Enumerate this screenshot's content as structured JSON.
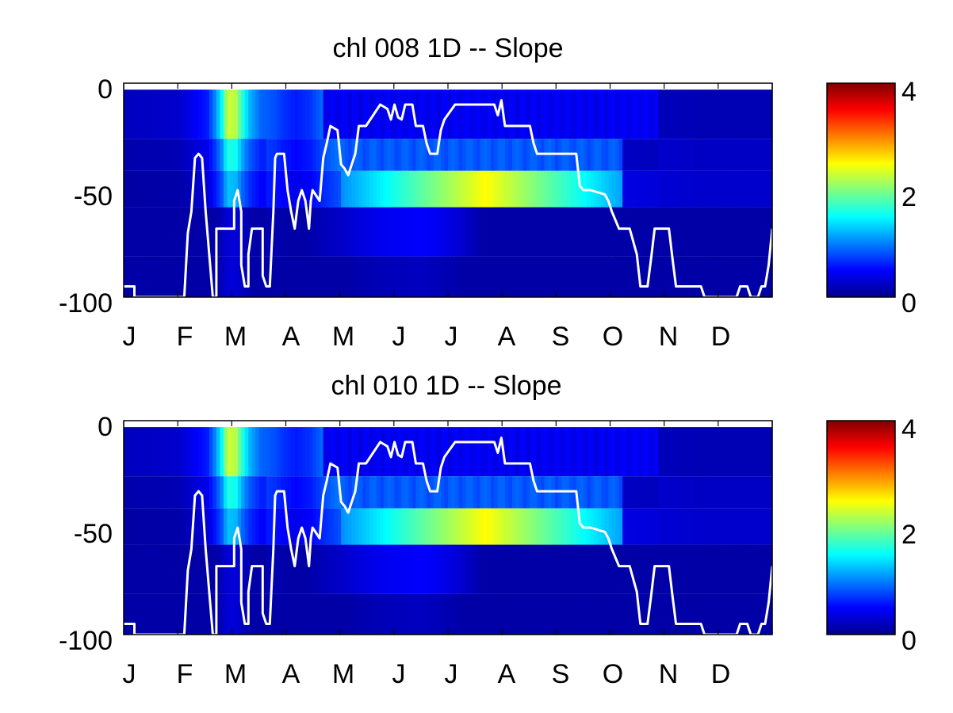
{
  "chart_data": [
    {
      "type": "heatmap",
      "title": "chl  008 1D   -- Slope",
      "x_tick_labels": [
        "J",
        "F",
        "M",
        "A",
        "M",
        "J",
        "J",
        "A",
        "S",
        "O",
        "N",
        "D"
      ],
      "y_tick_labels": [
        "0",
        "-50",
        "-100"
      ],
      "ylim": [
        -100,
        0
      ],
      "colorbar": {
        "ticks": [
          "0",
          "2",
          "4"
        ],
        "range": [
          0,
          4
        ],
        "colormap": "jet"
      },
      "depth_layer_tops": [
        -3,
        -26,
        -41,
        -58,
        -81
      ],
      "value_profile": [
        [
          0,
          0.25
        ],
        [
          15,
          0.3
        ],
        [
          23,
          0.6
        ],
        [
          25,
          1.0
        ],
        [
          27,
          1.5
        ],
        [
          28,
          2.0
        ],
        [
          29,
          2.3
        ],
        [
          31,
          2.2
        ],
        [
          33,
          1.6
        ],
        [
          35,
          1.2
        ],
        [
          38,
          0.9
        ],
        [
          42,
          0.8
        ],
        [
          44,
          0.7
        ],
        [
          48,
          0.6
        ],
        [
          52,
          0.7
        ],
        [
          55,
          0.9
        ],
        [
          60,
          1.15
        ],
        [
          65,
          1.45
        ],
        [
          70,
          1.75
        ],
        [
          75,
          1.9
        ],
        [
          80,
          2.0
        ],
        [
          83,
          2.05
        ],
        [
          87,
          1.9
        ],
        [
          92,
          1.55
        ],
        [
          96,
          1.1
        ],
        [
          100,
          0.7
        ],
        [
          104,
          0.5
        ],
        [
          108,
          0.7
        ],
        [
          112,
          0.95
        ],
        [
          116,
          1.05
        ],
        [
          119,
          0.95
        ],
        [
          121,
          1.1
        ],
        [
          123,
          0.9
        ],
        [
          125,
          1.2
        ],
        [
          127,
          0.8
        ],
        [
          130,
          0.6
        ],
        [
          140,
          0.35
        ],
        [
          162,
          0.3
        ]
      ],
      "layer_weights": [
        [
          1.0,
          0.7,
          0.5,
          0.25,
          0.25,
          0.2
        ],
        [
          1.0,
          0.85,
          0.7,
          0.4,
          0.2,
          0.2
        ],
        [
          0.5,
          0.75,
          1.1,
          0.15,
          0.1,
          0.1
        ],
        [
          0.7,
          0.9,
          1.0,
          0.45,
          0.5,
          0.4
        ]
      ],
      "mixed_layer_depth": [
        [
          0,
          -95
        ],
        [
          3,
          -95
        ],
        [
          3,
          -100
        ],
        [
          17,
          -100
        ],
        [
          18,
          -70
        ],
        [
          19,
          -60
        ],
        [
          20,
          -35
        ],
        [
          21,
          -33
        ],
        [
          22,
          -35
        ],
        [
          23,
          -60
        ],
        [
          25,
          -100
        ],
        [
          26,
          -100
        ],
        [
          26,
          -68
        ],
        [
          31,
          -68
        ],
        [
          31,
          -55
        ],
        [
          32,
          -50
        ],
        [
          33,
          -60
        ],
        [
          33,
          -85
        ],
        [
          34,
          -95
        ],
        [
          35,
          -95
        ],
        [
          35,
          -80
        ],
        [
          36,
          -68
        ],
        [
          39,
          -68
        ],
        [
          39,
          -90
        ],
        [
          40,
          -95
        ],
        [
          41,
          -95
        ],
        [
          42,
          -60
        ],
        [
          42.5,
          -35
        ],
        [
          43,
          -33
        ],
        [
          45,
          -33
        ],
        [
          46,
          -50
        ],
        [
          47,
          -60
        ],
        [
          48,
          -68
        ],
        [
          49,
          -55
        ],
        [
          50,
          -50
        ],
        [
          51,
          -55
        ],
        [
          52,
          -68
        ],
        [
          52.5,
          -55
        ],
        [
          53,
          -50
        ],
        [
          55,
          -55
        ],
        [
          56,
          -35
        ],
        [
          57,
          -28
        ],
        [
          58,
          -20
        ],
        [
          60,
          -22
        ],
        [
          61,
          -38
        ],
        [
          62,
          -40
        ],
        [
          63,
          -43
        ],
        [
          64,
          -38
        ],
        [
          65,
          -33
        ],
        [
          66,
          -20
        ],
        [
          68,
          -20
        ],
        [
          70,
          -15
        ],
        [
          72,
          -10
        ],
        [
          74,
          -12
        ],
        [
          75,
          -17
        ],
        [
          76,
          -10
        ],
        [
          77,
          -16
        ],
        [
          78,
          -17
        ],
        [
          79,
          -10
        ],
        [
          81,
          -10
        ],
        [
          82,
          -20
        ],
        [
          84,
          -20
        ],
        [
          85,
          -28
        ],
        [
          86,
          -33
        ],
        [
          88,
          -33
        ],
        [
          89,
          -22
        ],
        [
          90,
          -17
        ],
        [
          93,
          -10
        ],
        [
          104,
          -10
        ],
        [
          105,
          -15
        ],
        [
          106,
          -8
        ],
        [
          107,
          -20
        ],
        [
          114,
          -20
        ],
        [
          115,
          -28
        ],
        [
          116,
          -33
        ],
        [
          127,
          -33
        ],
        [
          128,
          -48
        ],
        [
          129,
          -50
        ],
        [
          131,
          -50
        ],
        [
          135,
          -52
        ],
        [
          136,
          -55
        ],
        [
          137,
          -60
        ],
        [
          139,
          -68
        ],
        [
          142,
          -68
        ],
        [
          144,
          -80
        ],
        [
          145,
          -95
        ],
        [
          147,
          -95
        ],
        [
          148,
          -82
        ],
        [
          149,
          -68
        ],
        [
          153,
          -68
        ],
        [
          154,
          -82
        ],
        [
          155,
          -95
        ],
        [
          162,
          -95
        ],
        [
          163,
          -100
        ],
        [
          172,
          -100
        ],
        [
          173,
          -95
        ],
        [
          175,
          -95
        ],
        [
          176,
          -100
        ],
        [
          178,
          -100
        ],
        [
          179,
          -95
        ],
        [
          180,
          -95
        ],
        [
          181,
          -85
        ],
        [
          182,
          -68
        ]
      ]
    },
    {
      "type": "heatmap",
      "title": "chl  010 1D   -- Slope",
      "x_tick_labels": [
        "J",
        "F",
        "M",
        "A",
        "M",
        "J",
        "J",
        "A",
        "S",
        "O",
        "N",
        "D"
      ],
      "y_tick_labels": [
        "0",
        "-50",
        "-100"
      ],
      "ylim": [
        -100,
        0
      ],
      "colorbar": {
        "ticks": [
          "0",
          "2",
          "4"
        ],
        "range": [
          0,
          4
        ],
        "colormap": "jet"
      },
      "depth_layer_tops": [
        -3,
        -26,
        -41,
        -58,
        -81
      ],
      "value_profile": [
        [
          0,
          0.25
        ],
        [
          15,
          0.3
        ],
        [
          23,
          0.6
        ],
        [
          25,
          1.0
        ],
        [
          27,
          1.5
        ],
        [
          28,
          2.0
        ],
        [
          29,
          2.3
        ],
        [
          31,
          2.2
        ],
        [
          33,
          1.6
        ],
        [
          35,
          1.2
        ],
        [
          38,
          0.9
        ],
        [
          42,
          0.8
        ],
        [
          44,
          0.7
        ],
        [
          48,
          0.6
        ],
        [
          52,
          0.7
        ],
        [
          55,
          0.9
        ],
        [
          60,
          1.15
        ],
        [
          65,
          1.45
        ],
        [
          70,
          1.75
        ],
        [
          75,
          1.9
        ],
        [
          80,
          2.0
        ],
        [
          83,
          2.05
        ],
        [
          87,
          1.9
        ],
        [
          92,
          1.55
        ],
        [
          96,
          1.1
        ],
        [
          100,
          0.7
        ],
        [
          104,
          0.5
        ],
        [
          108,
          0.7
        ],
        [
          112,
          0.95
        ],
        [
          116,
          1.05
        ],
        [
          119,
          0.95
        ],
        [
          121,
          1.1
        ],
        [
          123,
          0.9
        ],
        [
          125,
          1.2
        ],
        [
          127,
          0.8
        ],
        [
          130,
          0.6
        ],
        [
          140,
          0.35
        ],
        [
          162,
          0.3
        ]
      ],
      "layer_weights": [
        [
          1.0,
          0.7,
          0.5,
          0.25,
          0.25,
          0.2
        ],
        [
          1.0,
          0.85,
          0.7,
          0.4,
          0.2,
          0.2
        ],
        [
          0.5,
          0.75,
          1.1,
          0.15,
          0.1,
          0.1
        ],
        [
          0.7,
          0.9,
          1.0,
          0.45,
          0.5,
          0.4
        ]
      ],
      "mixed_layer_depth": [
        [
          0,
          -95
        ],
        [
          3,
          -95
        ],
        [
          3,
          -100
        ],
        [
          17,
          -100
        ],
        [
          18,
          -70
        ],
        [
          19,
          -60
        ],
        [
          20,
          -35
        ],
        [
          21,
          -33
        ],
        [
          22,
          -35
        ],
        [
          23,
          -60
        ],
        [
          25,
          -100
        ],
        [
          26,
          -100
        ],
        [
          26,
          -68
        ],
        [
          31,
          -68
        ],
        [
          31,
          -55
        ],
        [
          32,
          -50
        ],
        [
          33,
          -60
        ],
        [
          33,
          -85
        ],
        [
          34,
          -95
        ],
        [
          35,
          -95
        ],
        [
          35,
          -80
        ],
        [
          36,
          -68
        ],
        [
          39,
          -68
        ],
        [
          39,
          -90
        ],
        [
          40,
          -95
        ],
        [
          41,
          -95
        ],
        [
          42,
          -60
        ],
        [
          42.5,
          -35
        ],
        [
          43,
          -33
        ],
        [
          45,
          -33
        ],
        [
          46,
          -50
        ],
        [
          47,
          -60
        ],
        [
          48,
          -68
        ],
        [
          49,
          -55
        ],
        [
          50,
          -50
        ],
        [
          51,
          -55
        ],
        [
          52,
          -68
        ],
        [
          52.5,
          -55
        ],
        [
          53,
          -50
        ],
        [
          55,
          -55
        ],
        [
          56,
          -35
        ],
        [
          57,
          -28
        ],
        [
          58,
          -20
        ],
        [
          60,
          -22
        ],
        [
          61,
          -38
        ],
        [
          62,
          -40
        ],
        [
          63,
          -43
        ],
        [
          64,
          -38
        ],
        [
          65,
          -33
        ],
        [
          66,
          -20
        ],
        [
          68,
          -20
        ],
        [
          70,
          -15
        ],
        [
          72,
          -10
        ],
        [
          74,
          -12
        ],
        [
          75,
          -17
        ],
        [
          76,
          -10
        ],
        [
          77,
          -16
        ],
        [
          78,
          -17
        ],
        [
          79,
          -10
        ],
        [
          81,
          -10
        ],
        [
          82,
          -20
        ],
        [
          84,
          -20
        ],
        [
          85,
          -28
        ],
        [
          86,
          -33
        ],
        [
          88,
          -33
        ],
        [
          89,
          -22
        ],
        [
          90,
          -17
        ],
        [
          93,
          -10
        ],
        [
          104,
          -10
        ],
        [
          105,
          -15
        ],
        [
          106,
          -8
        ],
        [
          107,
          -20
        ],
        [
          114,
          -20
        ],
        [
          115,
          -28
        ],
        [
          116,
          -33
        ],
        [
          127,
          -33
        ],
        [
          128,
          -48
        ],
        [
          129,
          -50
        ],
        [
          131,
          -50
        ],
        [
          135,
          -52
        ],
        [
          136,
          -55
        ],
        [
          137,
          -60
        ],
        [
          139,
          -68
        ],
        [
          142,
          -68
        ],
        [
          144,
          -80
        ],
        [
          145,
          -95
        ],
        [
          147,
          -95
        ],
        [
          148,
          -82
        ],
        [
          149,
          -68
        ],
        [
          153,
          -68
        ],
        [
          154,
          -82
        ],
        [
          155,
          -95
        ],
        [
          162,
          -95
        ],
        [
          163,
          -100
        ],
        [
          172,
          -100
        ],
        [
          173,
          -95
        ],
        [
          175,
          -95
        ],
        [
          176,
          -100
        ],
        [
          178,
          -100
        ],
        [
          179,
          -95
        ],
        [
          180,
          -95
        ],
        [
          181,
          -85
        ],
        [
          182,
          -68
        ]
      ]
    }
  ]
}
